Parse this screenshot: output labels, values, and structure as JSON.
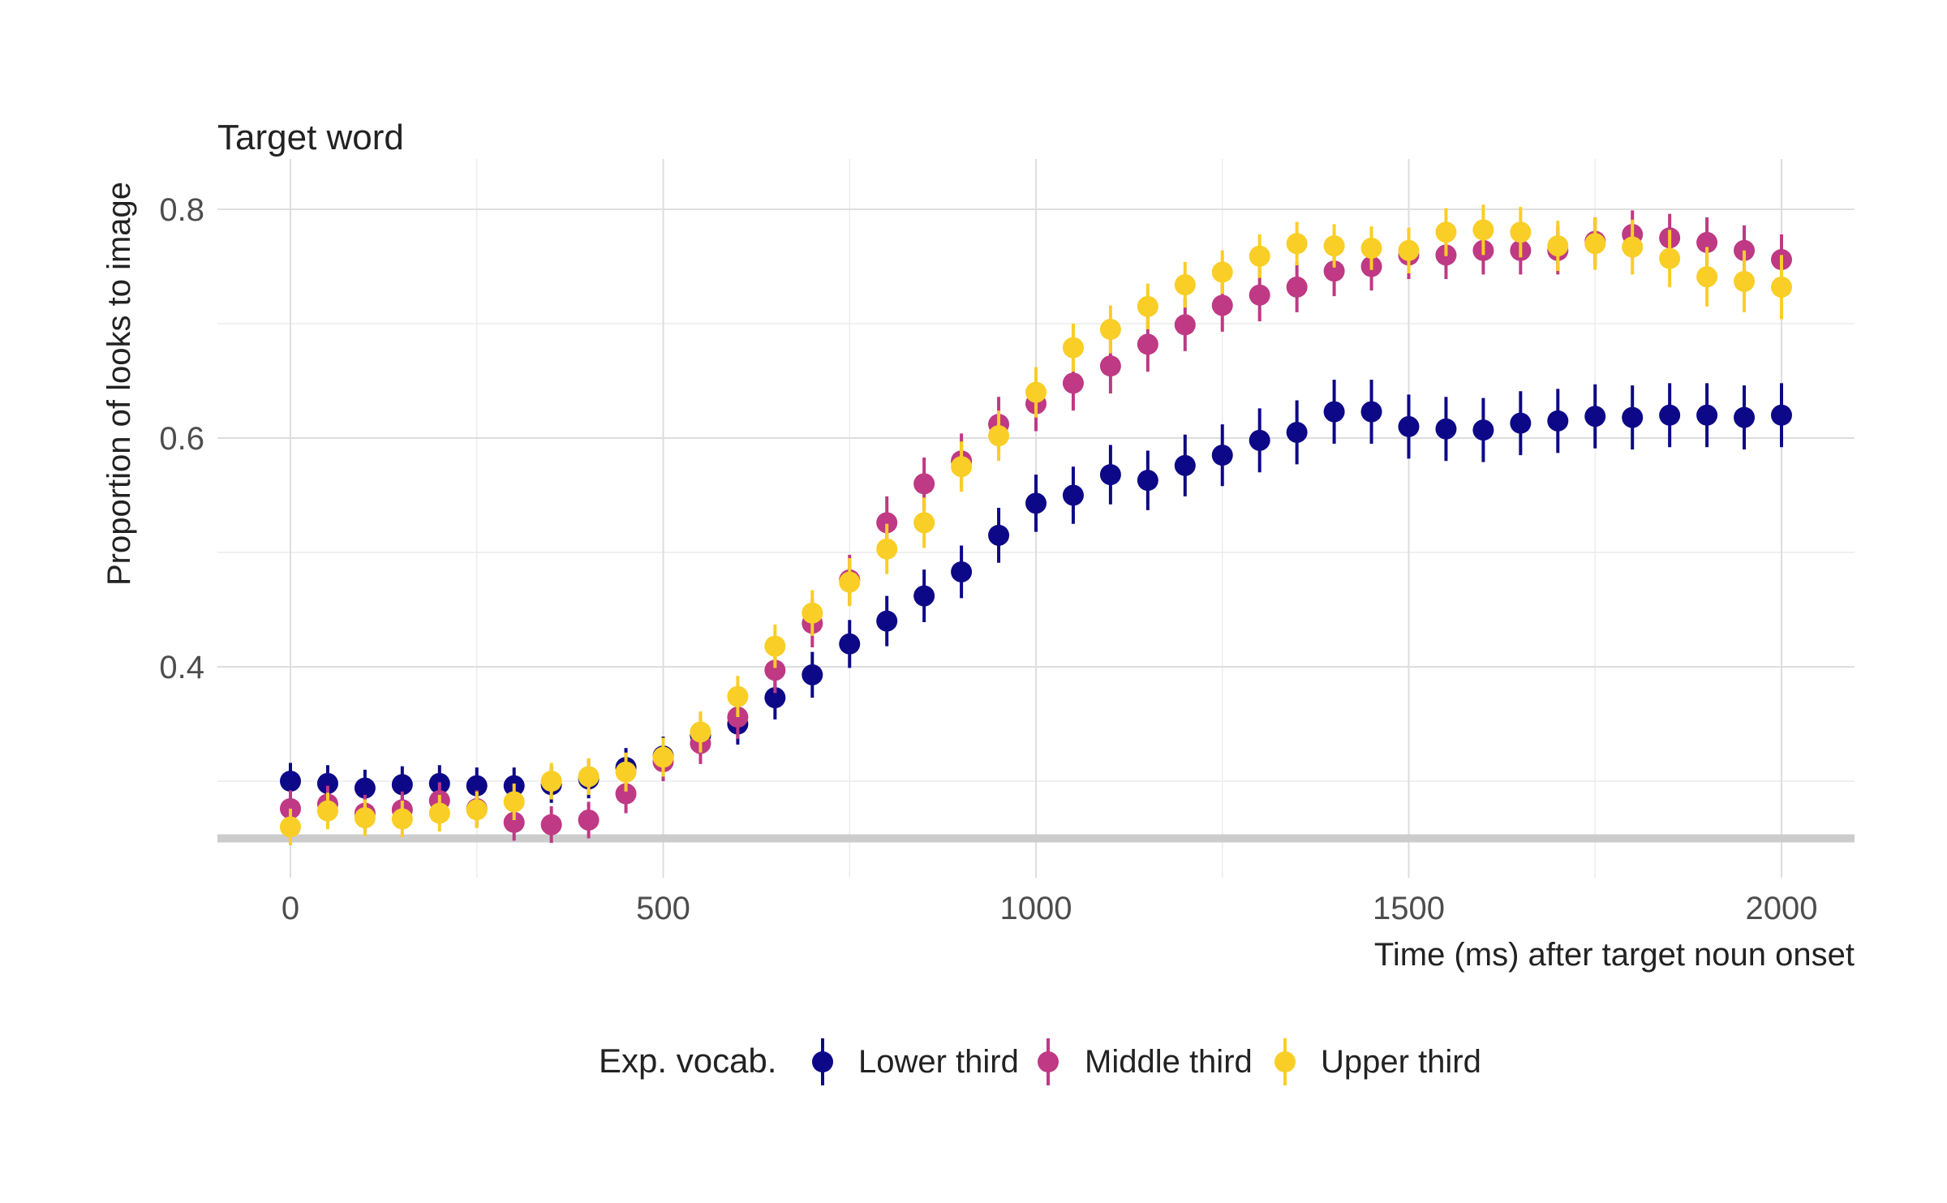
{
  "chart_data": {
    "type": "scatter",
    "title": "Target word",
    "subtitle": "",
    "xlabel": "Time (ms) after target noun onset",
    "ylabel": "Proportion of looks to image",
    "xlim": [
      -100,
      2100
    ],
    "ylim": [
      0.235,
      0.825
    ],
    "x_ticks": [
      0,
      500,
      1000,
      1500,
      2000
    ],
    "x_tick_labels": [
      "0",
      "500",
      "1000",
      "1500",
      "2000"
    ],
    "y_ticks": [
      0.4,
      0.6,
      0.8
    ],
    "y_tick_labels": [
      "0.4",
      "0.6",
      "0.8"
    ],
    "grid": true,
    "chance_line_y": 0.25,
    "legend": {
      "title": "Exp. vocab.",
      "placement": "bottom"
    },
    "x": [
      0,
      50,
      100,
      150,
      200,
      250,
      300,
      350,
      400,
      450,
      500,
      550,
      600,
      650,
      700,
      750,
      800,
      850,
      900,
      950,
      1000,
      1050,
      1100,
      1150,
      1200,
      1250,
      1300,
      1350,
      1400,
      1450,
      1500,
      1550,
      1600,
      1650,
      1700,
      1750,
      1800,
      1850,
      1900,
      1950,
      2000
    ],
    "series": [
      {
        "name": "Lower third",
        "color": "#0d0887",
        "values": [
          0.3,
          0.298,
          0.294,
          0.297,
          0.298,
          0.296,
          0.296,
          0.297,
          0.302,
          0.312,
          0.322,
          0.34,
          0.35,
          0.373,
          0.393,
          0.42,
          0.44,
          0.462,
          0.483,
          0.515,
          0.543,
          0.55,
          0.568,
          0.563,
          0.576,
          0.585,
          0.598,
          0.605,
          0.623,
          0.623,
          0.61,
          0.608,
          0.607,
          0.613,
          0.615,
          0.619,
          0.618,
          0.62,
          0.62,
          0.618,
          0.62
        ],
        "errors": [
          0.016,
          0.016,
          0.016,
          0.016,
          0.016,
          0.016,
          0.016,
          0.016,
          0.017,
          0.017,
          0.017,
          0.018,
          0.018,
          0.019,
          0.02,
          0.021,
          0.022,
          0.023,
          0.023,
          0.024,
          0.025,
          0.025,
          0.026,
          0.026,
          0.027,
          0.027,
          0.028,
          0.028,
          0.028,
          0.028,
          0.028,
          0.028,
          0.028,
          0.028,
          0.028,
          0.028,
          0.028,
          0.028,
          0.028,
          0.028,
          0.028
        ]
      },
      {
        "name": "Middle third",
        "color": "#bf3984",
        "values": [
          0.276,
          0.28,
          0.272,
          0.275,
          0.283,
          0.276,
          0.264,
          0.262,
          0.266,
          0.289,
          0.317,
          0.333,
          0.356,
          0.397,
          0.438,
          0.476,
          0.526,
          0.56,
          0.58,
          0.612,
          0.63,
          0.648,
          0.663,
          0.682,
          0.699,
          0.716,
          0.725,
          0.732,
          0.746,
          0.75,
          0.76,
          0.76,
          0.764,
          0.764,
          0.764,
          0.772,
          0.778,
          0.775,
          0.771,
          0.764,
          0.756
        ],
        "errors": [
          0.016,
          0.016,
          0.016,
          0.016,
          0.016,
          0.016,
          0.016,
          0.016,
          0.016,
          0.017,
          0.017,
          0.018,
          0.019,
          0.02,
          0.021,
          0.022,
          0.023,
          0.023,
          0.024,
          0.024,
          0.024,
          0.024,
          0.024,
          0.024,
          0.023,
          0.023,
          0.023,
          0.022,
          0.022,
          0.021,
          0.021,
          0.021,
          0.021,
          0.021,
          0.021,
          0.021,
          0.021,
          0.021,
          0.022,
          0.022,
          0.022
        ]
      },
      {
        "name": "Upper third",
        "color": "#f9ce26",
        "values": [
          0.26,
          0.274,
          0.268,
          0.267,
          0.272,
          0.275,
          0.282,
          0.3,
          0.304,
          0.308,
          0.321,
          0.343,
          0.374,
          0.418,
          0.447,
          0.474,
          0.503,
          0.526,
          0.575,
          0.602,
          0.64,
          0.679,
          0.695,
          0.715,
          0.734,
          0.745,
          0.759,
          0.77,
          0.768,
          0.766,
          0.764,
          0.78,
          0.782,
          0.78,
          0.768,
          0.77,
          0.767,
          0.757,
          0.741,
          0.737,
          0.732
        ],
        "errors": [
          0.016,
          0.016,
          0.016,
          0.016,
          0.016,
          0.016,
          0.016,
          0.016,
          0.016,
          0.017,
          0.017,
          0.018,
          0.018,
          0.019,
          0.02,
          0.021,
          0.022,
          0.022,
          0.022,
          0.022,
          0.022,
          0.021,
          0.021,
          0.02,
          0.02,
          0.019,
          0.019,
          0.019,
          0.019,
          0.019,
          0.02,
          0.021,
          0.022,
          0.022,
          0.022,
          0.023,
          0.024,
          0.025,
          0.026,
          0.027,
          0.028
        ]
      }
    ]
  }
}
